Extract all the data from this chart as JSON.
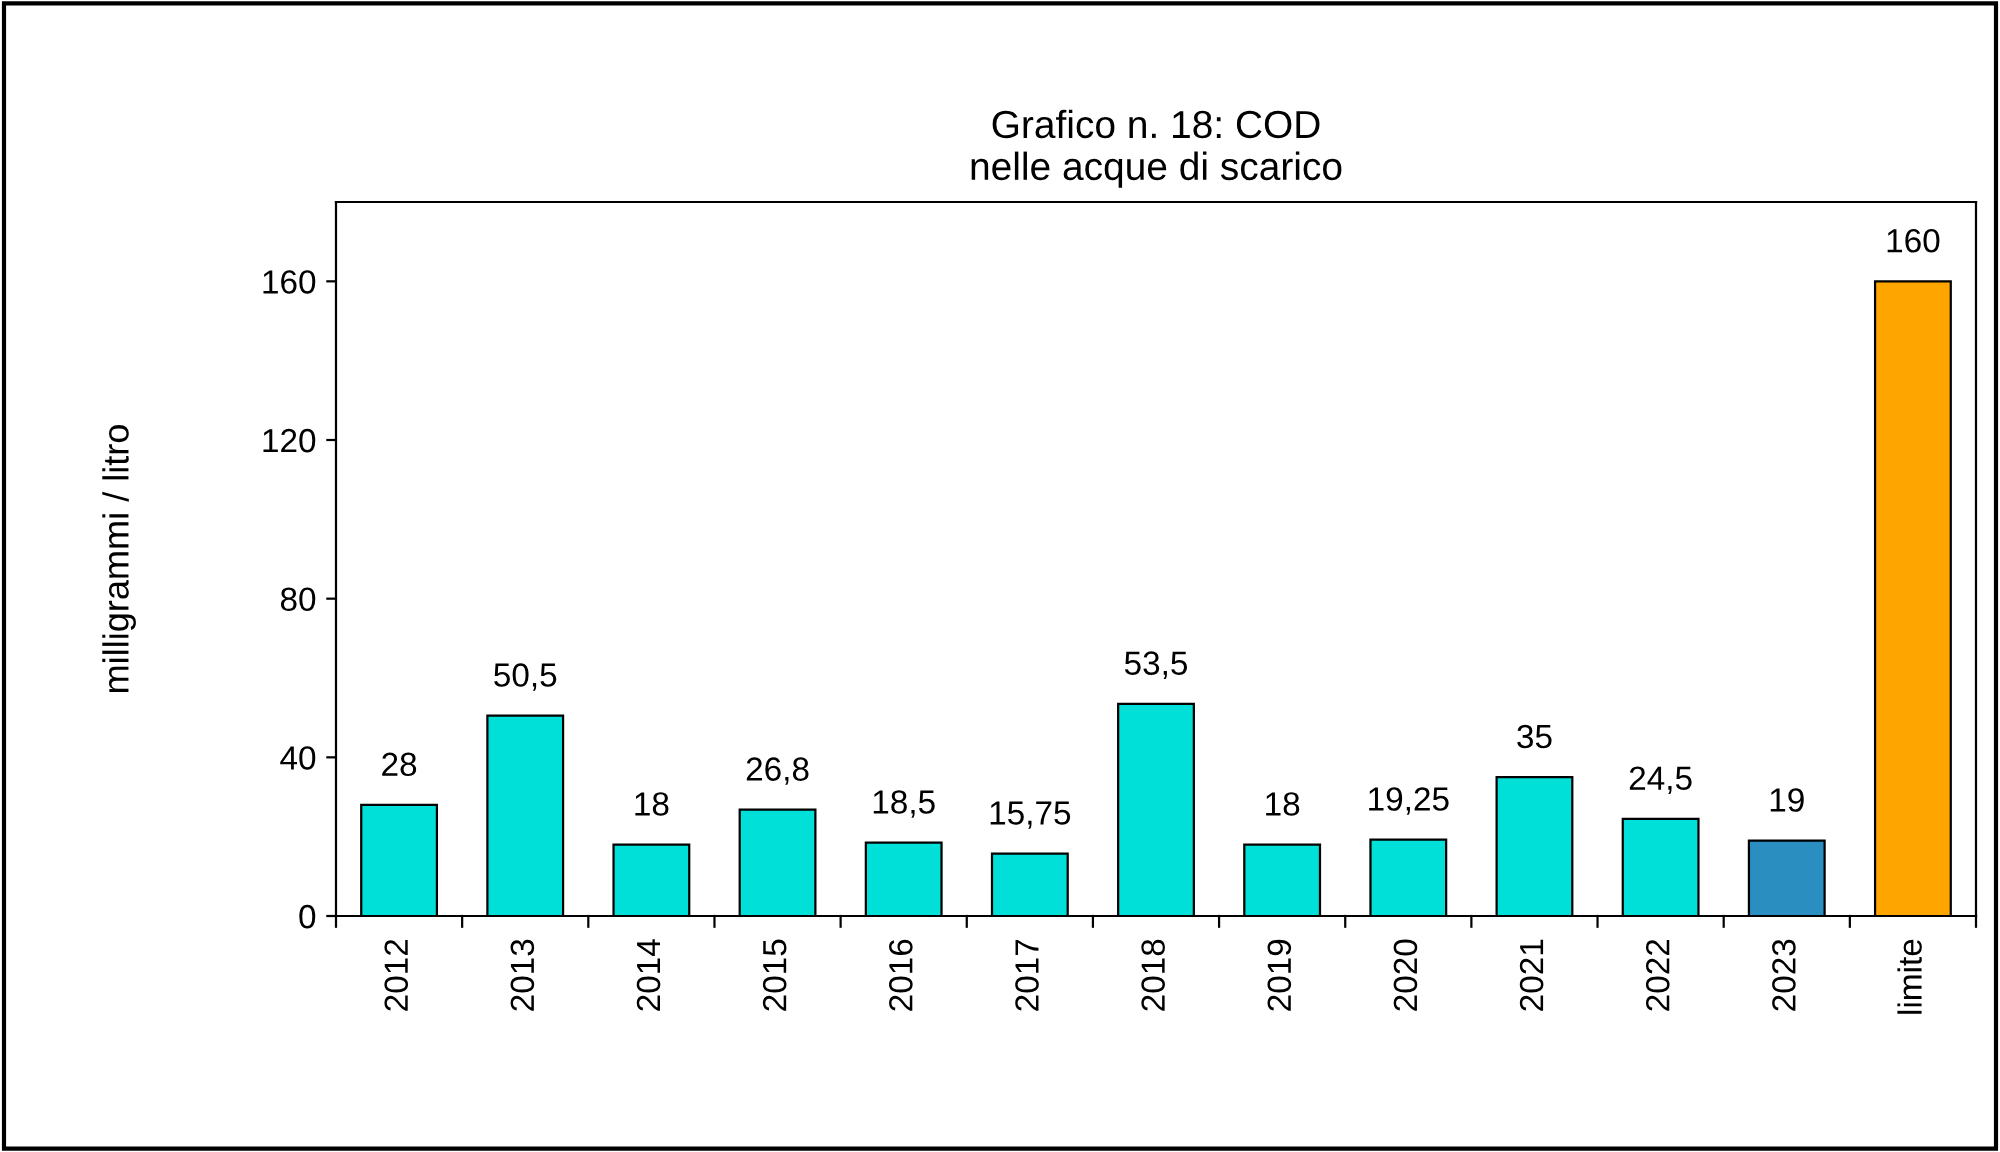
{
  "chart_data": {
    "type": "bar",
    "title": "Grafico n. 18: COD\nnelle acque di scarico",
    "ylabel": "milligrammi / litro",
    "categories": [
      "2012",
      "2013",
      "2014",
      "2015",
      "2016",
      "2017",
      "2018",
      "2019",
      "2020",
      "2021",
      "2022",
      "2023",
      "limite"
    ],
    "values": [
      28,
      50.5,
      18,
      26.8,
      18.5,
      15.75,
      53.5,
      18,
      19.25,
      35,
      24.5,
      19,
      160
    ],
    "value_labels": [
      "28",
      "50,5",
      "18",
      "26,8",
      "18,5",
      "15,75",
      "53,5",
      "18",
      "19,25",
      "35",
      "24,5",
      "19",
      "160"
    ],
    "colors": [
      "#00e0d8",
      "#00e0d8",
      "#00e0d8",
      "#00e0d8",
      "#00e0d8",
      "#00e0d8",
      "#00e0d8",
      "#00e0d8",
      "#00e0d8",
      "#00e0d8",
      "#00e0d8",
      "#2a8fc0",
      "#ffa500"
    ],
    "ylim": [
      0,
      180
    ],
    "yticks": [
      0,
      40,
      80,
      120,
      160
    ],
    "grid": false,
    "legend": false
  }
}
